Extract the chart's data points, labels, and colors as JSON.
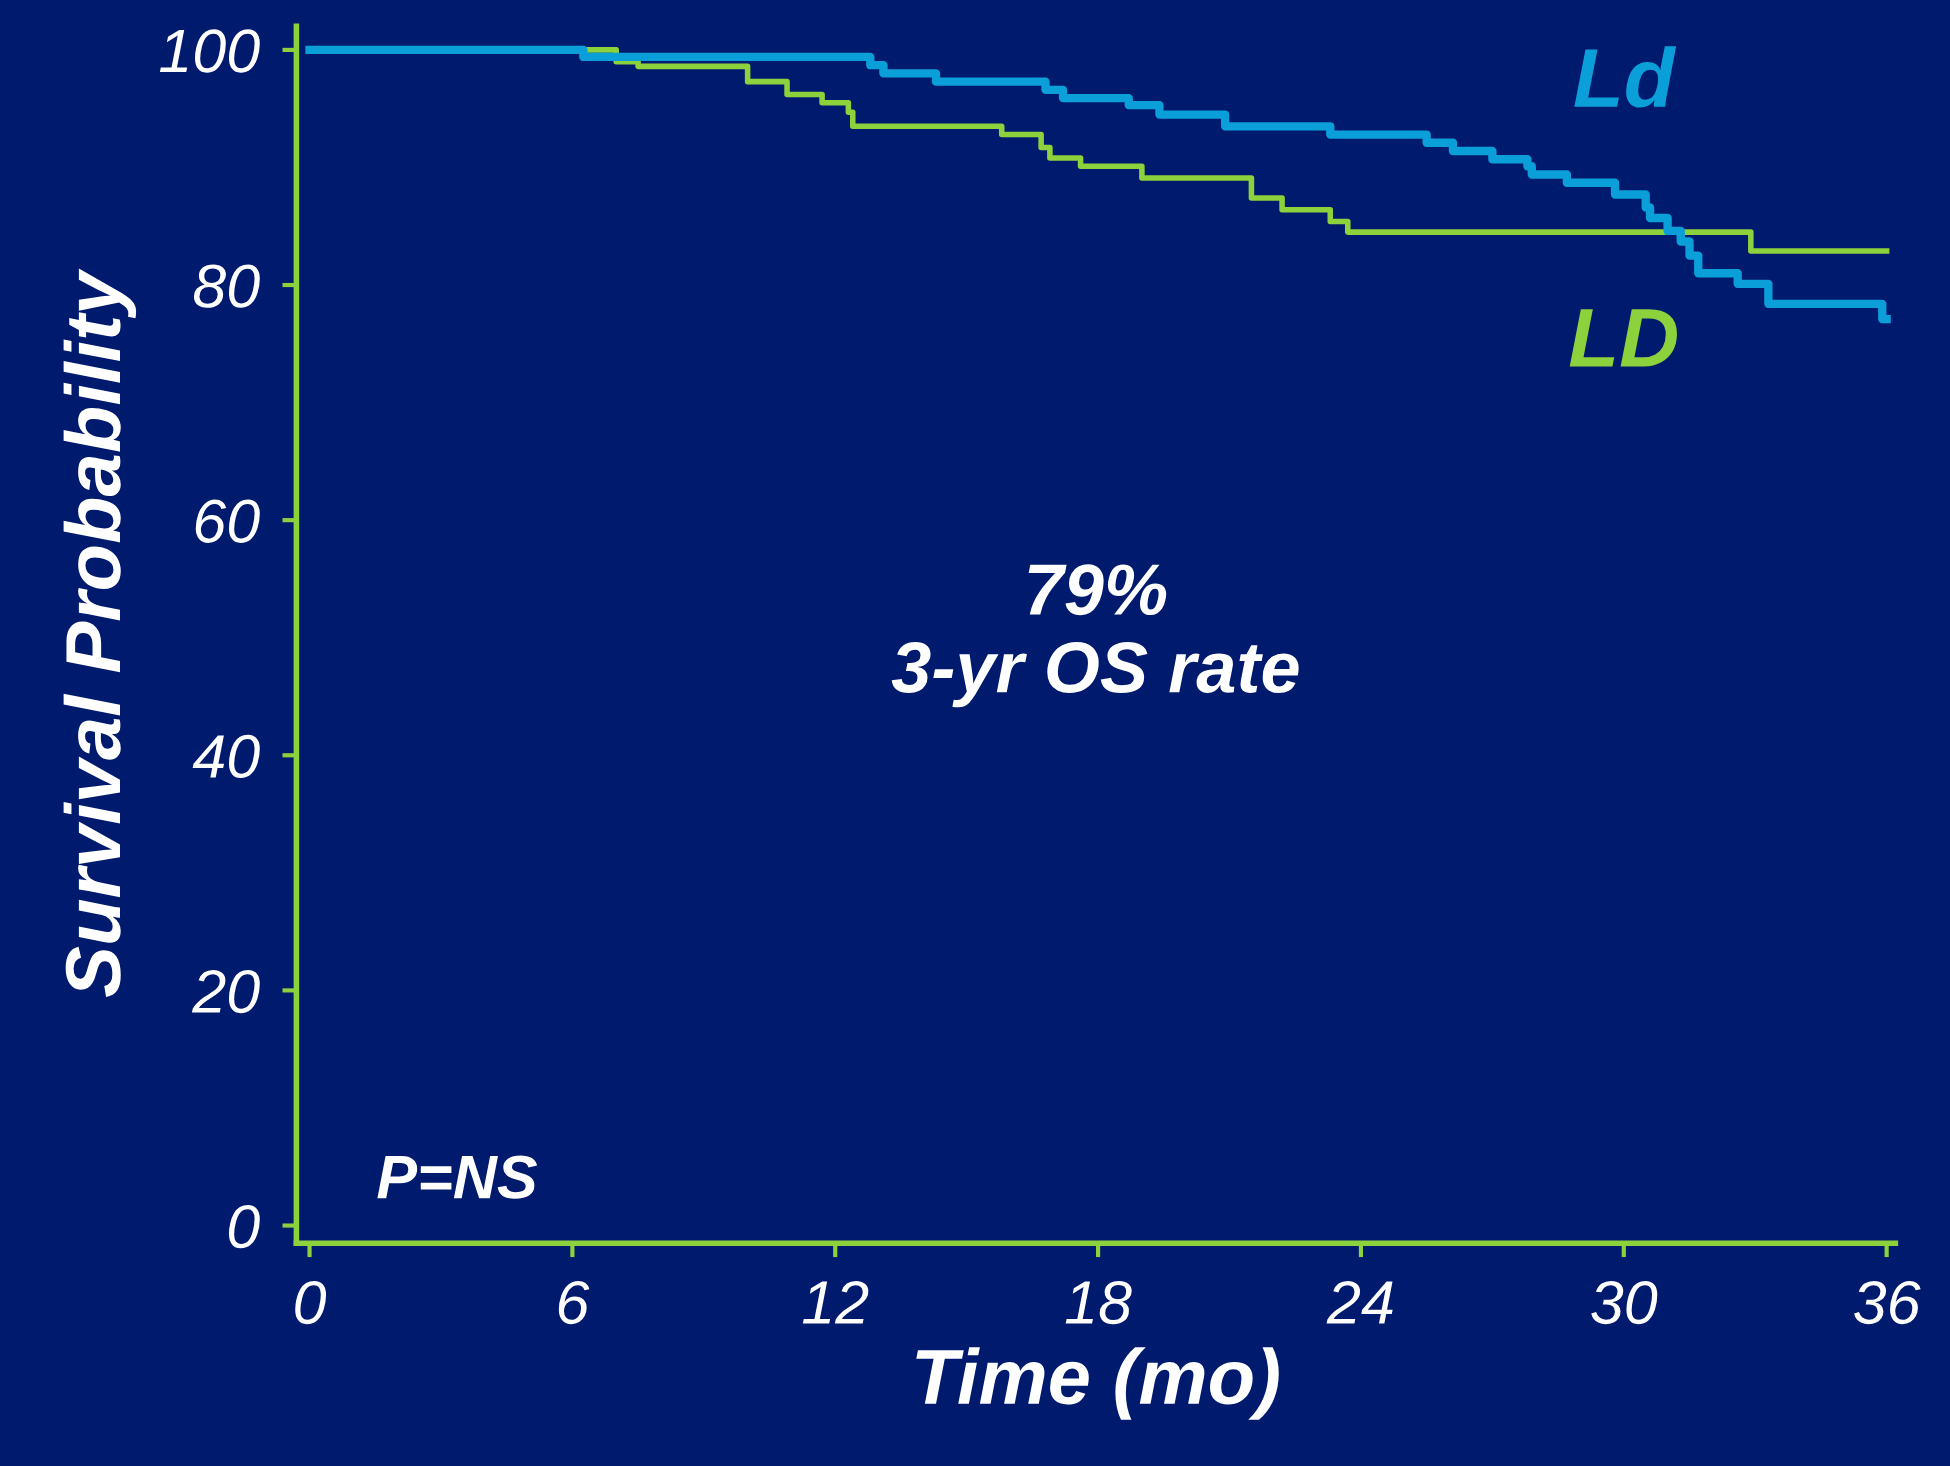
{
  "chart_data": {
    "type": "step",
    "xlabel": "Time (mo)",
    "ylabel": "Survival Probability",
    "xlim": [
      -0.3,
      36.2
    ],
    "ylim": [
      -1.5,
      102
    ],
    "xticks": [
      0,
      6,
      12,
      18,
      24,
      30,
      36
    ],
    "yticks": [
      0,
      20,
      40,
      60,
      80,
      100
    ],
    "grid": false,
    "legend": false,
    "series": [
      {
        "name": "Ld",
        "color": "#0a9fd8",
        "x": [
          0,
          6.25,
          12.8,
          13.1,
          14.3,
          16.8,
          17.2,
          18.7,
          19.4,
          20.9,
          23.3,
          25.5,
          26.1,
          27.0,
          27.8,
          27.9,
          28.7,
          29.8,
          30.5,
          30.6,
          31.0,
          31.3,
          31.5,
          31.7,
          32.6,
          33.3,
          35.9,
          36.0
        ],
        "values": [
          100,
          99.4,
          98.7,
          98.0,
          97.3,
          96.6,
          95.9,
          95.3,
          94.5,
          93.5,
          92.8,
          92.1,
          91.4,
          90.7,
          90.1,
          89.4,
          88.7,
          87.7,
          86.6,
          85.7,
          84.6,
          83.7,
          82.5,
          81.0,
          80.1,
          78.4,
          77.1,
          77.1
        ]
      },
      {
        "name": "LD",
        "color": "#8cd23c",
        "x": [
          0,
          7.0,
          7.5,
          10.0,
          10.9,
          11.7,
          12.3,
          12.4,
          15.8,
          16.7,
          16.9,
          17.6,
          19.0,
          21.5,
          22.2,
          23.3,
          23.7,
          32.9,
          36.0
        ],
        "values": [
          100,
          99.0,
          98.6,
          97.3,
          96.2,
          95.5,
          94.7,
          93.5,
          92.8,
          91.7,
          90.8,
          90.1,
          89.1,
          87.4,
          86.4,
          85.4,
          84.5,
          82.9,
          82.9
        ]
      }
    ],
    "annotations": [
      "79%\n3-yr OS rate",
      "P=NS"
    ]
  }
}
